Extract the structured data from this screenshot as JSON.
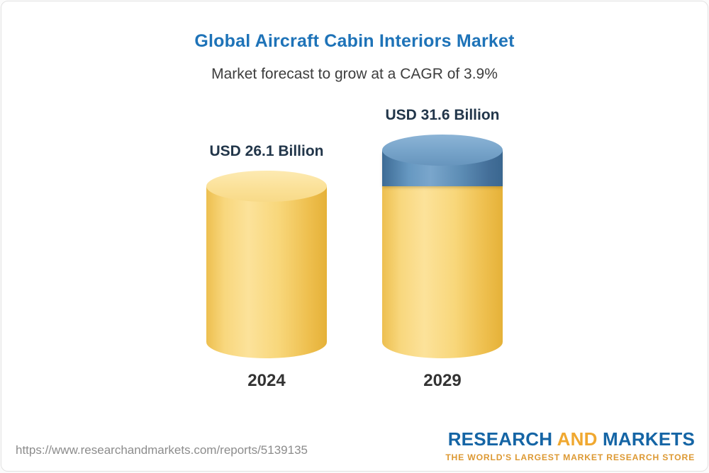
{
  "page": {
    "url": "https://www.researchandmarkets.com/reports/5139135",
    "logo": {
      "part1": "RESEARCH",
      "part2": "AND",
      "part3": "MARKETS",
      "tagline": "THE WORLD'S LARGEST MARKET RESEARCH STORE"
    }
  },
  "chart_data": {
    "type": "bar",
    "style": "3d-cylinder",
    "title": "Global Aircraft Cabin Interiors Market",
    "subtitle": "Market forecast to grow at a CAGR of 3.9%",
    "cagr_percent": 3.9,
    "unit": "USD Billion",
    "categories": [
      "2024",
      "2029"
    ],
    "values": [
      26.1,
      31.6
    ],
    "value_labels": [
      "USD 26.1 Billion",
      "USD 31.6 Billion"
    ],
    "ylim": [
      0,
      31.6
    ],
    "grid": false,
    "legend": false,
    "bars": [
      {
        "category": "2024",
        "total": 26.1,
        "label": "USD 26.1 Billion",
        "segments": [
          {
            "name": "base",
            "value": 26.1,
            "color": "yellow"
          }
        ]
      },
      {
        "category": "2029",
        "total": 31.6,
        "label": "USD 31.6 Billion",
        "segments": [
          {
            "name": "base",
            "value": 26.1,
            "color": "yellow"
          },
          {
            "name": "growth",
            "value": 5.5,
            "color": "blue"
          }
        ]
      }
    ],
    "colors": {
      "yellow": "#f5cd62",
      "yellow_light": "#fbe198",
      "yellow_dark": "#e5b138",
      "blue": "#4a7ba6",
      "blue_light": "#7aa6cc",
      "blue_dark": "#3a6790",
      "title_blue": "#1e73b8"
    }
  }
}
